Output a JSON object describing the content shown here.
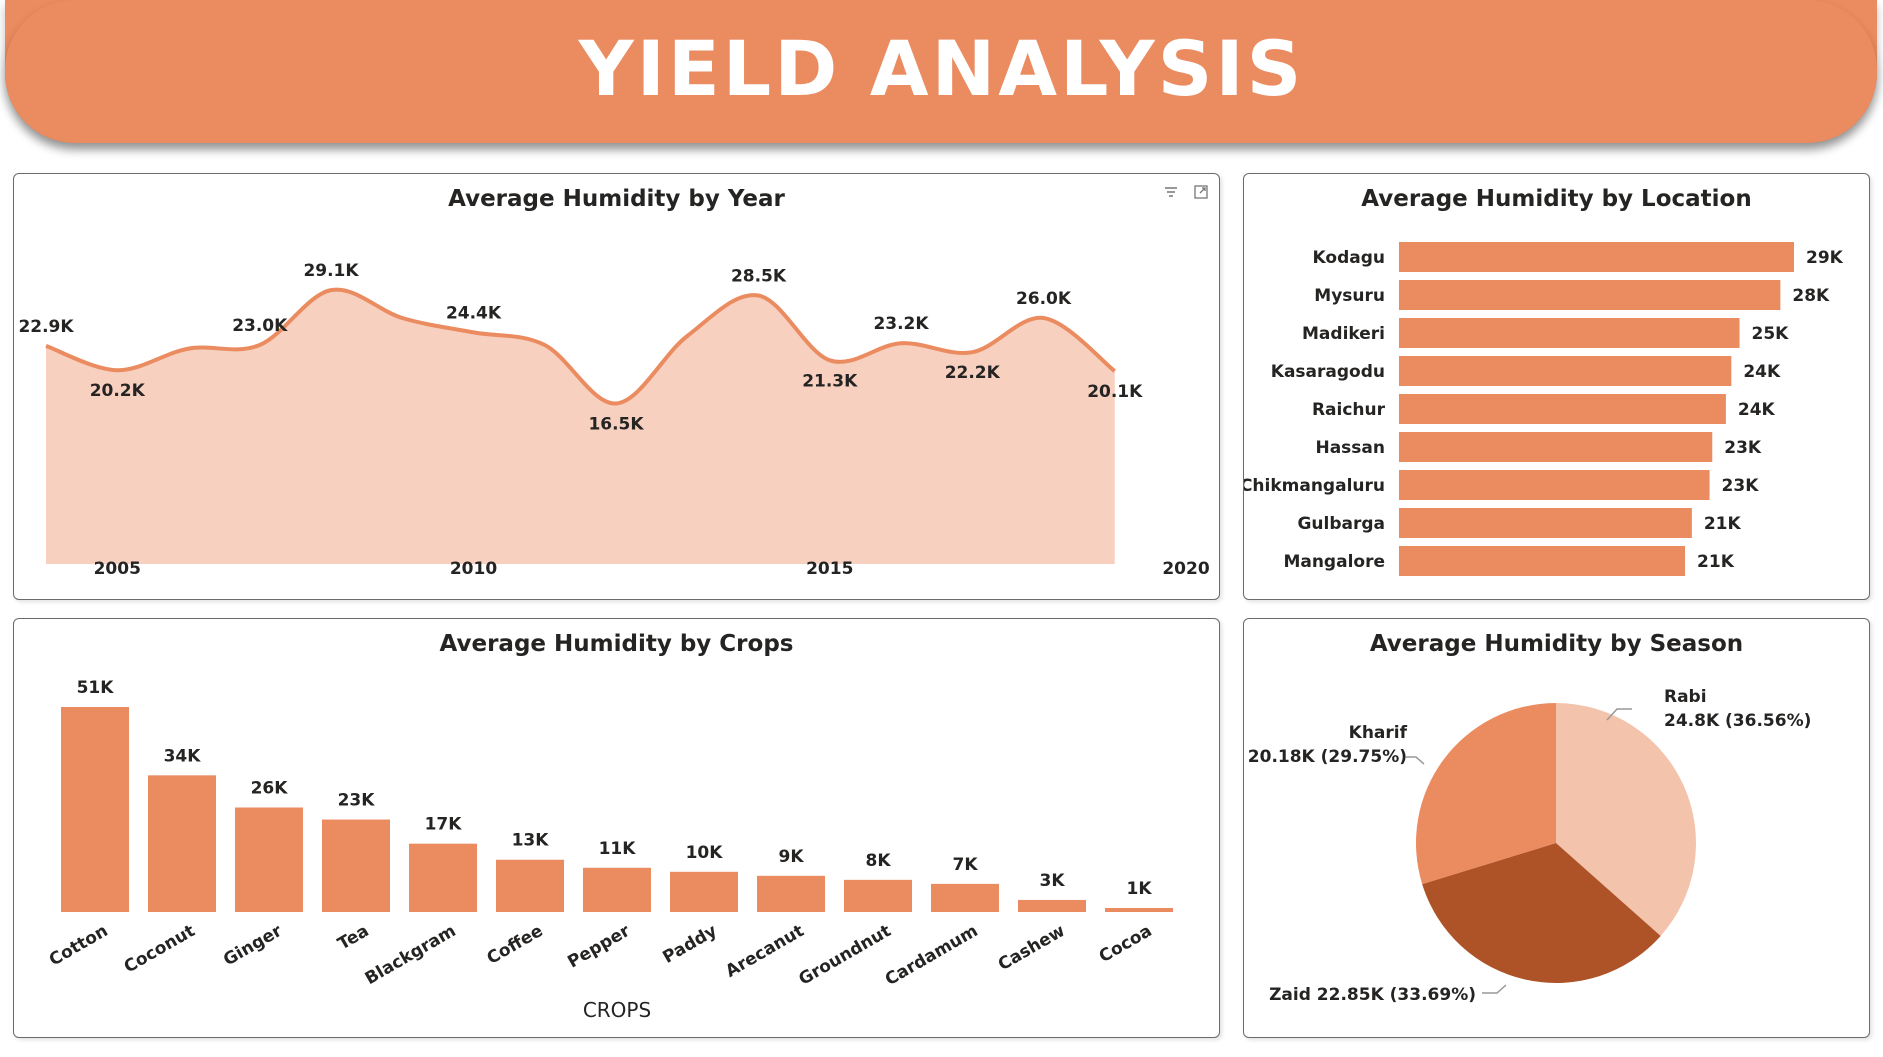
{
  "header": {
    "title": "YIELD ANALYSIS"
  },
  "colors": {
    "accent": "#eb8b60",
    "area_fill": "#f7d0c0",
    "pie_light": "#f3c3ab",
    "pie_dark": "#ae5228"
  },
  "year_chart": {
    "title": "Average Humidity by Year",
    "icons": [
      "filter-icon",
      "focus-mode-icon"
    ],
    "chart_data": {
      "type": "area",
      "title": "Average Humidity by Year",
      "x": [
        2004,
        2005,
        2006,
        2007,
        2008,
        2009,
        2010,
        2011,
        2012,
        2013,
        2014,
        2015,
        2016,
        2017,
        2018,
        2019
      ],
      "values": [
        22.9,
        20.2,
        22.6,
        23.0,
        29.1,
        26.0,
        24.4,
        23.0,
        16.5,
        24.0,
        28.5,
        21.3,
        23.2,
        22.2,
        26.0,
        20.1
      ],
      "data_labels": [
        {
          "x": 2004,
          "text": "22.9K"
        },
        {
          "x": 2005,
          "text": "20.2K"
        },
        {
          "x": 2007,
          "text": "23.0K"
        },
        {
          "x": 2008,
          "text": "29.1K"
        },
        {
          "x": 2010,
          "text": "24.4K"
        },
        {
          "x": 2012,
          "text": "16.5K"
        },
        {
          "x": 2014,
          "text": "28.5K"
        },
        {
          "x": 2015,
          "text": "21.3K"
        },
        {
          "x": 2016,
          "text": "23.2K"
        },
        {
          "x": 2017,
          "text": "22.2K"
        },
        {
          "x": 2018,
          "text": "26.0K"
        },
        {
          "x": 2019,
          "text": "20.1K"
        }
      ],
      "x_ticks": [
        "2005",
        "2010",
        "2015",
        "2020"
      ],
      "ylim": [
        0,
        32
      ],
      "grid": false
    }
  },
  "location_chart": {
    "title": "Average Humidity by Location",
    "chart_data": {
      "type": "bar",
      "orientation": "horizontal",
      "title": "Average Humidity by Location",
      "categories": [
        "Kodagu",
        "Mysuru",
        "Madikeri",
        "Kasaragodu",
        "Raichur",
        "Hassan",
        "Chikmangaluru",
        "Gulbarga",
        "Mangalore"
      ],
      "values": [
        29.0,
        28.0,
        25.0,
        24.4,
        24.0,
        23.0,
        22.8,
        21.5,
        21.0
      ],
      "data_labels": [
        "29K",
        "28K",
        "25K",
        "24K",
        "24K",
        "23K",
        "23K",
        "21K",
        "21K"
      ]
    }
  },
  "crops_chart": {
    "title": "Average Humidity by Crops",
    "chart_data": {
      "type": "bar",
      "title": "Average Humidity by Crops",
      "xlabel": "CROPS",
      "categories": [
        "Cotton",
        "Coconut",
        "Ginger",
        "Tea",
        "Blackgram",
        "Coffee",
        "Pepper",
        "Paddy",
        "Arecanut",
        "Groundnut",
        "Cardamum",
        "Cashew",
        "Cocoa"
      ],
      "values": [
        51,
        34,
        26,
        23,
        17,
        13,
        11,
        10,
        9,
        8,
        7,
        3,
        1
      ],
      "data_labels": [
        "51K",
        "34K",
        "26K",
        "23K",
        "17K",
        "13K",
        "11K",
        "10K",
        "9K",
        "8K",
        "7K",
        "3K",
        "1K"
      ],
      "ylim": [
        0,
        55
      ]
    }
  },
  "season_chart": {
    "title": "Average Humidity by Season",
    "chart_data": {
      "type": "pie",
      "title": "Average Humidity by Season",
      "slices": [
        {
          "name": "Rabi",
          "value": 24.8,
          "percent": 36.56,
          "label": "24.8K (36.56%)",
          "color": "#f3c3ab"
        },
        {
          "name": "Zaid",
          "value": 22.85,
          "percent": 33.69,
          "label": "Zaid 22.85K (33.69%)",
          "color": "#ae5228"
        },
        {
          "name": "Kharif",
          "value": 20.18,
          "percent": 29.75,
          "label": "20.18K (29.75%)",
          "color": "#eb8b60"
        }
      ]
    }
  }
}
